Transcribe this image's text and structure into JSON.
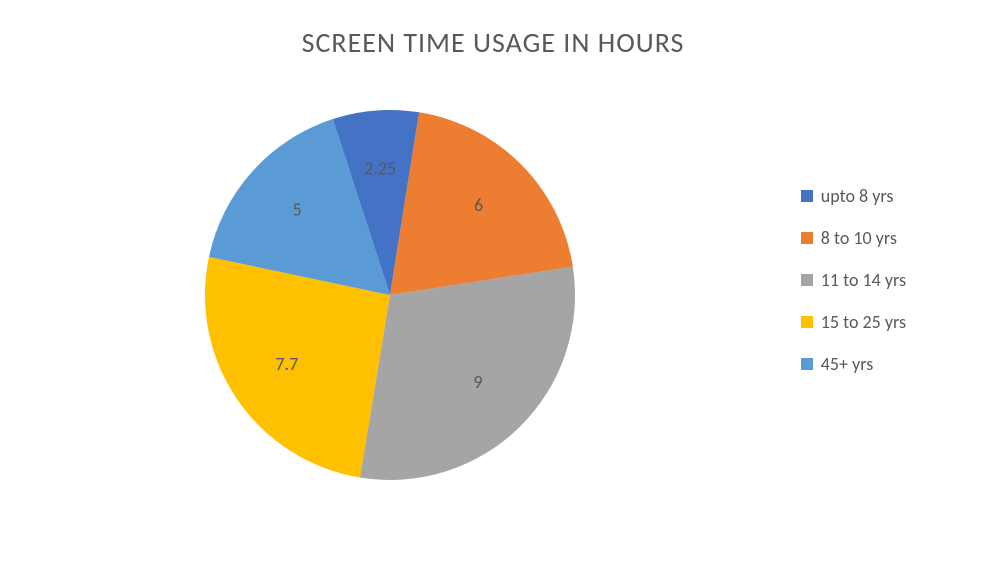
{
  "chart": {
    "type": "pie",
    "title": "SCREEN TIME USAGE IN HOURS",
    "title_fontsize": 28,
    "title_color": "#595959",
    "background_color": "#ffffff",
    "slices": [
      {
        "label": "upto 8 yrs",
        "value": 2.25,
        "color": "#4472c4",
        "display": "2.25"
      },
      {
        "label": "8 to 10 yrs",
        "value": 6,
        "color": "#ed7d31",
        "display": "6"
      },
      {
        "label": "11 to 14 yrs",
        "value": 9,
        "color": "#a5a5a5",
        "display": "9"
      },
      {
        "label": "15 to 25 yrs",
        "value": 7.7,
        "color": "#ffc000",
        "display": "7.7"
      },
      {
        "label": "45+ yrs",
        "value": 5,
        "color": "#5b9bd5",
        "display": "5"
      }
    ],
    "label_fontsize": 18,
    "label_color": "#595959",
    "legend_fontsize": 18,
    "radius": 185,
    "label_offset": 125,
    "start_angle_deg": -108
  }
}
